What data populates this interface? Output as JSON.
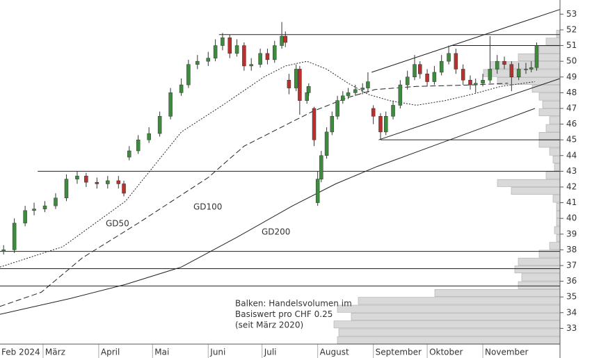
{
  "chart_data": {
    "type": "candlestick",
    "xlim": [
      6,
      318
    ],
    "xticks": [
      {
        "value": 1,
        "label": "Feb 2024"
      },
      {
        "value": 30,
        "label": "März"
      },
      {
        "value": 61,
        "label": "April"
      },
      {
        "value": 91,
        "label": "Mai"
      },
      {
        "value": 122,
        "label": "Juni"
      },
      {
        "value": 152,
        "label": "Juli"
      },
      {
        "value": 183,
        "label": "August"
      },
      {
        "value": 214,
        "label": "September"
      },
      {
        "value": 244,
        "label": "Oktober"
      },
      {
        "value": 275,
        "label": "November"
      }
    ],
    "ylim": [
      32,
      53.9
    ],
    "yticks": [
      33,
      34,
      35,
      36,
      37,
      38,
      39,
      40,
      41,
      42,
      43,
      44,
      45,
      46,
      47,
      48,
      49,
      50,
      51,
      52,
      53
    ],
    "up_color": "#3d8c3d",
    "down_color": "#b8312f",
    "x": [
      8,
      14,
      20,
      25,
      31,
      37,
      43,
      49,
      54,
      60,
      66,
      72,
      75,
      78,
      83,
      89,
      95,
      101,
      107,
      111,
      116,
      122,
      126,
      130,
      134,
      138,
      142,
      146,
      151,
      155,
      159,
      163,
      165,
      167,
      171,
      173,
      177,
      178,
      181,
      183,
      185,
      188,
      191,
      194,
      197,
      200,
      204,
      208,
      211,
      214,
      218,
      221,
      225,
      229,
      233,
      237,
      240,
      244,
      248,
      252,
      256,
      260,
      264,
      268,
      271,
      275,
      279,
      283,
      287,
      291,
      295,
      299,
      302,
      305
    ],
    "open": [
      37.9,
      38.0,
      39.7,
      40.5,
      40.6,
      40.8,
      41.3,
      42.5,
      42.7,
      42.3,
      42.2,
      42.4,
      42.2,
      43.9,
      44.3,
      45.0,
      45.4,
      46.5,
      48.0,
      48.5,
      49.8,
      50.0,
      50.2,
      51.0,
      51.5,
      50.5,
      51.0,
      49.7,
      49.8,
      50.5,
      50.1,
      51.0,
      51.6,
      48.8,
      48.3,
      49.5,
      47.5,
      48.0,
      47.0,
      41.0,
      42.5,
      44.0,
      45.5,
      46.5,
      47.5,
      47.8,
      48.0,
      48.2,
      48.3,
      47.0,
      46.5,
      45.5,
      46.5,
      47.2,
      48.5,
      49.0,
      49.8,
      49.2,
      48.7,
      49.3,
      50.0,
      50.5,
      49.5,
      48.8,
      48.5,
      48.6,
      48.8,
      49.5,
      50.0,
      49.8,
      49.0,
      49.5,
      49.5,
      49.6
    ],
    "high": [
      38.3,
      40.0,
      40.8,
      41.0,
      41.1,
      41.6,
      42.8,
      43.0,
      42.9,
      42.6,
      42.7,
      42.7,
      42.4,
      44.6,
      45.3,
      45.8,
      46.8,
      48.3,
      48.9,
      50.1,
      50.4,
      50.6,
      51.4,
      51.8,
      51.7,
      51.4,
      51.2,
      50.2,
      50.8,
      50.8,
      51.3,
      52.5,
      51.9,
      49.2,
      49.8,
      49.7,
      48.4,
      48.6,
      47.1,
      43.0,
      44.3,
      45.8,
      46.8,
      47.8,
      48.1,
      48.3,
      48.5,
      48.6,
      49.3,
      47.2,
      46.7,
      46.8,
      47.5,
      48.8,
      49.4,
      50.4,
      50.0,
      49.5,
      49.7,
      50.4,
      51.0,
      50.8,
      49.8,
      49.1,
      48.9,
      49.2,
      51.6,
      50.4,
      50.3,
      50.0,
      49.9,
      49.9,
      50.0,
      51.2
    ],
    "low": [
      37.7,
      37.8,
      39.5,
      40.2,
      40.4,
      40.6,
      41.1,
      42.2,
      42.0,
      41.9,
      41.9,
      41.9,
      41.4,
      43.7,
      44.1,
      44.8,
      45.2,
      46.3,
      47.8,
      48.3,
      49.5,
      49.7,
      50.0,
      50.7,
      50.2,
      50.3,
      49.4,
      49.4,
      49.6,
      49.8,
      49.9,
      50.8,
      50.9,
      47.9,
      48.1,
      46.6,
      47.3,
      47.8,
      44.6,
      40.8,
      42.3,
      43.8,
      45.3,
      46.3,
      47.3,
      47.6,
      47.8,
      47.9,
      48.0,
      46.0,
      45.0,
      45.3,
      46.3,
      47.0,
      48.2,
      48.8,
      48.9,
      48.4,
      48.5,
      49.1,
      49.8,
      49.2,
      48.5,
      48.2,
      48.0,
      48.4,
      48.6,
      49.2,
      49.5,
      48.1,
      48.8,
      49.2,
      49.3,
      49.4
    ],
    "close": [
      38.0,
      39.7,
      40.5,
      40.6,
      40.8,
      41.3,
      42.5,
      42.7,
      42.3,
      42.2,
      42.4,
      42.2,
      41.6,
      44.3,
      45.0,
      45.4,
      46.5,
      48.0,
      48.5,
      49.8,
      50.0,
      50.2,
      51.0,
      51.5,
      50.5,
      51.0,
      49.7,
      49.8,
      50.5,
      50.1,
      51.0,
      51.6,
      51.2,
      48.3,
      49.5,
      47.5,
      48.0,
      48.4,
      45.0,
      42.5,
      44.0,
      45.5,
      46.5,
      47.5,
      47.8,
      48.0,
      48.2,
      48.3,
      48.7,
      46.5,
      45.5,
      46.5,
      47.2,
      48.5,
      49.0,
      49.8,
      49.2,
      48.7,
      49.3,
      50.0,
      50.5,
      49.5,
      48.8,
      48.5,
      48.6,
      48.8,
      49.5,
      50.0,
      49.8,
      49.0,
      49.5,
      49.5,
      49.6,
      51.0
    ],
    "moving_averages": [
      {
        "name": "GD50",
        "style": "dotted",
        "x": [
          6,
          41,
          76,
          107,
          130,
          153,
          165,
          177,
          188,
          200,
          211,
          223,
          238,
          254,
          269,
          285,
          304
        ],
        "values": [
          36.9,
          38.2,
          41.1,
          45.5,
          47.2,
          49.0,
          49.7,
          50.0,
          49.5,
          48.6,
          47.9,
          47.5,
          47.2,
          47.5,
          47.9,
          48.4,
          48.7
        ]
      },
      {
        "name": "GD100",
        "style": "dashed",
        "x": [
          6,
          29,
          52,
          83,
          122,
          142,
          161,
          180,
          200,
          215,
          238,
          270,
          289
        ],
        "values": [
          34.4,
          35.3,
          37.5,
          39.7,
          42.6,
          44.6,
          45.7,
          46.8,
          47.7,
          48.2,
          48.4,
          48.5,
          48.6
        ]
      },
      {
        "name": "GD200",
        "style": "solid",
        "x": [
          6,
          45,
          76,
          107,
          138,
          169,
          193,
          216,
          247,
          278,
          304
        ],
        "values": [
          33.9,
          34.9,
          35.8,
          36.9,
          38.8,
          40.8,
          42.2,
          43.3,
          44.6,
          45.9,
          47.0
        ]
      }
    ],
    "levels": {
      "values": [
        51.7,
        51.0,
        45.0,
        43.0,
        37.9,
        36.8,
        35.7
      ],
      "from": [
        128,
        257,
        218,
        27,
        6,
        6,
        6
      ]
    },
    "channel": [
      {
        "x": [
          213,
          318
        ],
        "values": [
          49.3,
          53.3
        ]
      },
      {
        "x": [
          217,
          318
        ],
        "values": [
          45.0,
          48.9
        ]
      }
    ],
    "volume_profile": {
      "prices": [
        32.25,
        32.75,
        33.25,
        33.75,
        34.25,
        34.75,
        35.25,
        35.75,
        36.25,
        36.75,
        37.25,
        37.75,
        38.25,
        38.75,
        39.25,
        39.75,
        40.25,
        40.75,
        41.25,
        41.75,
        42.25,
        42.75,
        43.25,
        43.75,
        44.25,
        44.75,
        45.25,
        45.75,
        46.25,
        46.75,
        47.25,
        47.75,
        48.25,
        48.75,
        49.25,
        49.75,
        50.25,
        50.75,
        51.25,
        51.75
      ],
      "volumes": [
        320,
        318,
        325,
        300,
        320,
        290,
        180,
        60,
        55,
        65,
        60,
        30,
        15,
        5,
        8,
        5,
        5,
        5,
        10,
        70,
        90,
        20,
        8,
        10,
        15,
        30,
        30,
        20,
        15,
        30,
        25,
        30,
        40,
        90,
        110,
        100,
        60,
        30,
        20,
        5
      ],
      "color": "#d9d9d9"
    },
    "note": [
      "Balken: Handelsvolumen im",
      "Basiswert pro CHF 0.25",
      "(seit März 2020)"
    ]
  }
}
